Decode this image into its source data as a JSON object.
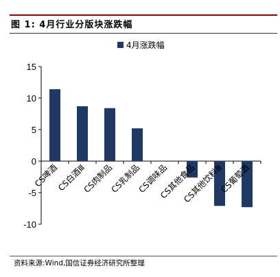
{
  "figure": {
    "title": "图 1: 4月行业分版块涨跌幅",
    "source": "资料来源:Wind,国信证券经济研究所整理"
  },
  "colors": {
    "bar": "#1F3864",
    "accent_rule": "#8B0000",
    "axis": "#000000"
  },
  "chart_data": {
    "type": "bar",
    "categories": [
      "CS啤酒",
      "CS白酒Ⅲ",
      "CS肉制品",
      "CS乳制品",
      "CS调味品",
      "CS其他食品",
      "CS其他饮料Ⅲ",
      "CS葡萄酒"
    ],
    "series": [
      {
        "name": "4月涨跌幅",
        "values": [
          11.4,
          8.7,
          8.4,
          5.2,
          0.0,
          -2.6,
          -7.1,
          -7.3
        ]
      }
    ],
    "ylim": [
      -10,
      15
    ],
    "yticks": [
      -10,
      -5,
      0,
      5,
      10,
      15
    ],
    "ytick_labels": [
      "-10",
      "-5",
      "0",
      "5",
      "10",
      "15"
    ],
    "xlabel": "",
    "ylabel": "",
    "grid": false,
    "legend_position": "top-center"
  }
}
